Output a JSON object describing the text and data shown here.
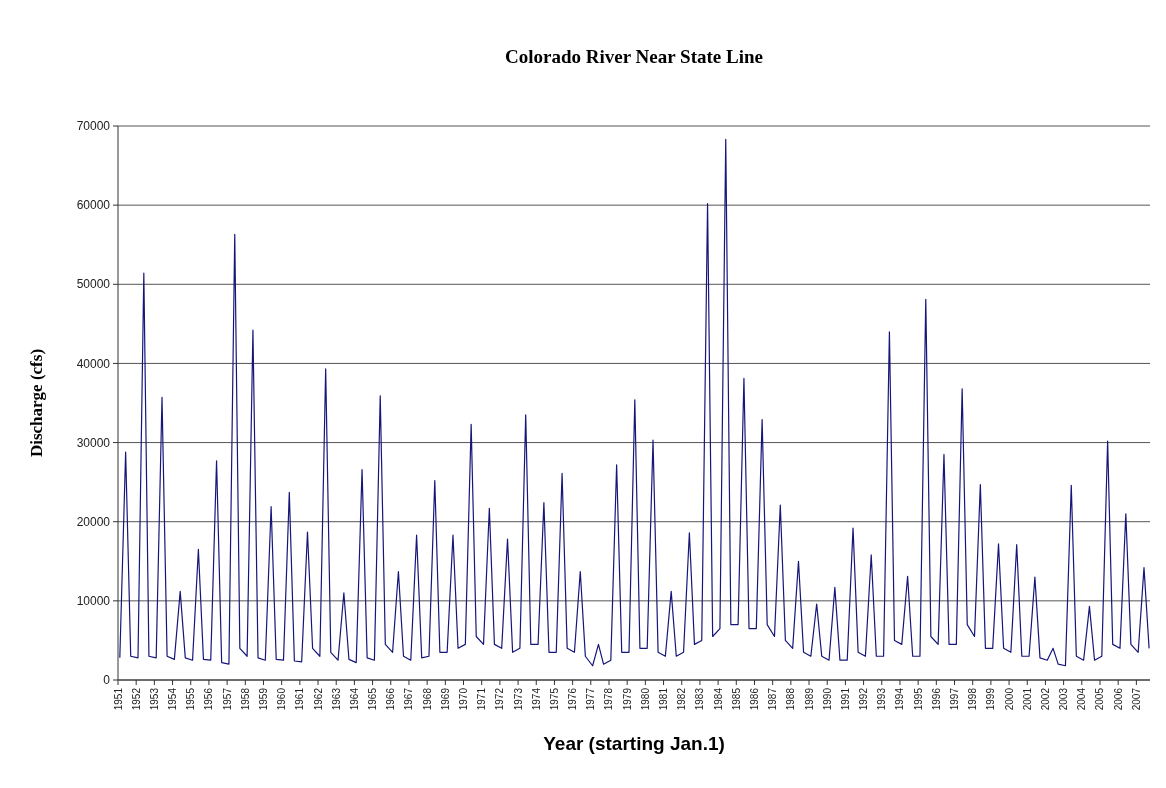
{
  "chart_data": {
    "type": "line",
    "title": "Colorado River Near State Line",
    "xlabel": "Year (starting Jan.1)",
    "ylabel": "Discharge (cfs)",
    "xlim": [
      1951,
      2007.75
    ],
    "xticks": [
      1951,
      1952,
      1953,
      1954,
      1955,
      1956,
      1957,
      1958,
      1959,
      1960,
      1961,
      1962,
      1963,
      1964,
      1965,
      1966,
      1967,
      1968,
      1969,
      1970,
      1971,
      1972,
      1973,
      1974,
      1975,
      1976,
      1977,
      1978,
      1979,
      1980,
      1981,
      1982,
      1983,
      1984,
      1985,
      1986,
      1987,
      1988,
      1989,
      1990,
      1991,
      1992,
      1993,
      1994,
      1995,
      1996,
      1997,
      1998,
      1999,
      2000,
      2001,
      2002,
      2003,
      2004,
      2005,
      2006,
      2007
    ],
    "ylim": [
      0,
      70000
    ],
    "yticks": [
      0,
      10000,
      20000,
      30000,
      40000,
      50000,
      60000,
      70000
    ],
    "grid": "y",
    "series": [
      {
        "color": "#16167a",
        "x": [
          1951.1,
          1951.42,
          1951.7,
          1952.1,
          1952.42,
          1952.7,
          1953.1,
          1953.42,
          1953.7,
          1954.1,
          1954.42,
          1954.7,
          1955.1,
          1955.42,
          1955.7,
          1956.1,
          1956.42,
          1956.7,
          1957.1,
          1957.42,
          1957.7,
          1958.1,
          1958.42,
          1958.7,
          1959.1,
          1959.42,
          1959.7,
          1960.1,
          1960.42,
          1960.7,
          1961.1,
          1961.42,
          1961.7,
          1962.1,
          1962.42,
          1962.7,
          1963.1,
          1963.42,
          1963.7,
          1964.1,
          1964.42,
          1964.7,
          1965.1,
          1965.42,
          1965.7,
          1966.1,
          1966.42,
          1966.7,
          1967.1,
          1967.42,
          1967.7,
          1968.1,
          1968.42,
          1968.7,
          1969.1,
          1969.42,
          1969.7,
          1970.1,
          1970.42,
          1970.7,
          1971.1,
          1971.42,
          1971.7,
          1972.1,
          1972.42,
          1972.7,
          1973.1,
          1973.42,
          1973.7,
          1974.1,
          1974.42,
          1974.7,
          1975.1,
          1975.42,
          1975.7,
          1976.1,
          1976.42,
          1976.7,
          1977.1,
          1977.42,
          1977.7,
          1978.1,
          1978.42,
          1978.7,
          1979.1,
          1979.42,
          1979.7,
          1980.1,
          1980.42,
          1980.7,
          1981.1,
          1981.42,
          1981.7,
          1982.1,
          1982.42,
          1982.7,
          1983.1,
          1983.42,
          1983.7,
          1984.1,
          1984.42,
          1984.7,
          1985.1,
          1985.42,
          1985.7,
          1986.1,
          1986.42,
          1986.7,
          1987.1,
          1987.42,
          1987.7,
          1988.1,
          1988.42,
          1988.7,
          1989.1,
          1989.42,
          1989.7,
          1990.1,
          1990.42,
          1990.7,
          1991.1,
          1991.42,
          1991.7,
          1992.1,
          1992.42,
          1992.7,
          1993.1,
          1993.42,
          1993.7,
          1994.1,
          1994.42,
          1994.7,
          1995.1,
          1995.42,
          1995.7,
          1996.1,
          1996.42,
          1996.7,
          1997.1,
          1997.42,
          1997.7,
          1998.1,
          1998.42,
          1998.7,
          1999.1,
          1999.42,
          1999.7,
          2000.1,
          2000.42,
          2000.7,
          2001.1,
          2001.42,
          2001.7,
          2002.1,
          2002.42,
          2002.7,
          2003.1,
          2003.42,
          2003.7,
          2004.1,
          2004.42,
          2004.7,
          2005.1,
          2005.42,
          2005.7,
          2006.1,
          2006.42,
          2006.7,
          2007.1,
          2007.42,
          2007.7
        ],
        "values": [
          2800,
          28800,
          3000,
          2800,
          51400,
          3000,
          2800,
          35700,
          3000,
          2600,
          11200,
          2800,
          2500,
          16500,
          2600,
          2500,
          27700,
          2200,
          2000,
          56300,
          4000,
          3000,
          44200,
          2800,
          2500,
          21900,
          2600,
          2500,
          23700,
          2400,
          2300,
          18700,
          4000,
          3000,
          39300,
          3500,
          2500,
          11000,
          2600,
          2200,
          26600,
          2800,
          2500,
          35900,
          4500,
          3500,
          13700,
          3000,
          2500,
          18300,
          2800,
          3000,
          25200,
          3500,
          3500,
          18300,
          4000,
          4500,
          32300,
          5500,
          4500,
          21700,
          4500,
          4000,
          17800,
          3500,
          4000,
          33500,
          4500,
          4500,
          22400,
          3500,
          3500,
          26100,
          4000,
          3500,
          13700,
          3000,
          1800,
          4500,
          2000,
          2500,
          27200,
          3500,
          3500,
          35400,
          4000,
          4000,
          30300,
          3500,
          3000,
          11200,
          3000,
          3500,
          18600,
          4500,
          5000,
          60200,
          5500,
          6500,
          68300,
          7000,
          7000,
          38100,
          6500,
          6500,
          32900,
          7000,
          5500,
          22100,
          5000,
          4000,
          15000,
          3500,
          3000,
          9600,
          3000,
          2500,
          11700,
          2500,
          2500,
          19200,
          3500,
          3000,
          15800,
          3000,
          3000,
          44000,
          5000,
          4500,
          13100,
          3000,
          3000,
          48100,
          5500,
          4500,
          28500,
          4500,
          4500,
          36800,
          7000,
          5500,
          24700,
          4000,
          4000,
          17200,
          4000,
          3500,
          17100,
          3000,
          3000,
          13000,
          2800,
          2500,
          4000,
          2000,
          1800,
          24600,
          3000,
          2500,
          9300,
          2500,
          3000,
          30200,
          4500,
          4000,
          21000,
          4500,
          3500,
          14200,
          4000
        ]
      }
    ]
  }
}
